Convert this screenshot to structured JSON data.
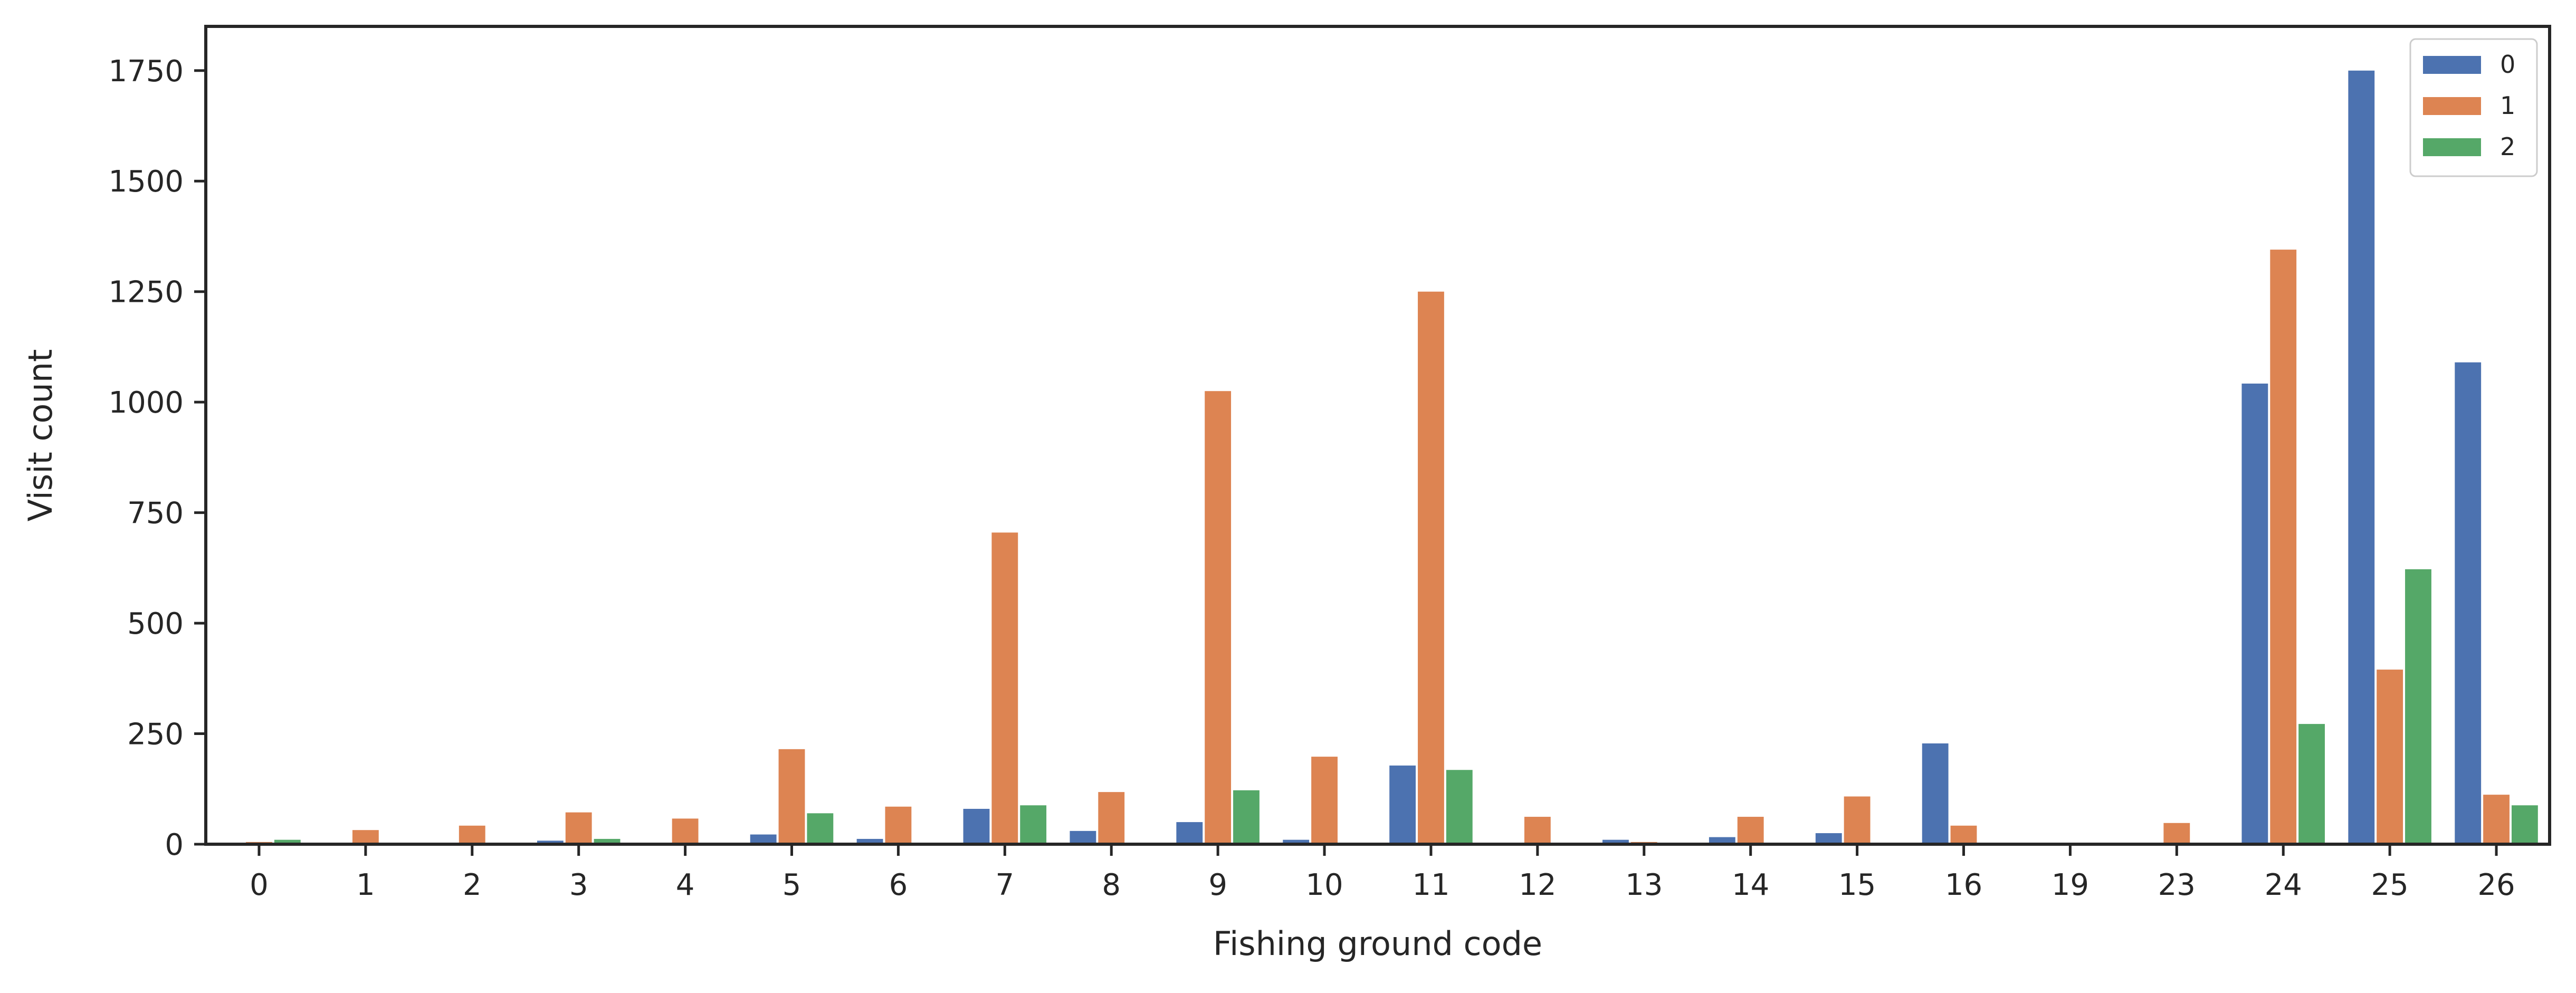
{
  "chart_data": {
    "type": "bar",
    "title": "",
    "xlabel": "Fishing ground code",
    "ylabel": "Visit count",
    "ylim": [
      0,
      1850
    ],
    "yticks": [
      0,
      250,
      500,
      750,
      1000,
      1250,
      1500,
      1750
    ],
    "grid": false,
    "legend_position": "top-right",
    "categories": [
      "0",
      "1",
      "2",
      "3",
      "4",
      "5",
      "6",
      "7",
      "8",
      "9",
      "10",
      "11",
      "12",
      "13",
      "14",
      "15",
      "16",
      "19",
      "23",
      "24",
      "25",
      "26"
    ],
    "series": [
      {
        "name": "0",
        "color": "#4c72b0",
        "values": [
          2,
          3,
          2,
          8,
          2,
          22,
          12,
          80,
          30,
          50,
          10,
          178,
          2,
          10,
          16,
          25,
          228,
          0,
          0,
          1042,
          1750,
          1090
        ]
      },
      {
        "name": "1",
        "color": "#dd8452",
        "values": [
          5,
          32,
          42,
          72,
          58,
          215,
          85,
          705,
          118,
          1025,
          198,
          1250,
          62,
          5,
          62,
          108,
          42,
          2,
          48,
          1345,
          395,
          112
        ]
      },
      {
        "name": "2",
        "color": "#55a868",
        "values": [
          10,
          2,
          2,
          12,
          2,
          70,
          2,
          88,
          2,
          122,
          2,
          168,
          2,
          2,
          2,
          2,
          2,
          2,
          2,
          272,
          622,
          88
        ]
      }
    ]
  }
}
